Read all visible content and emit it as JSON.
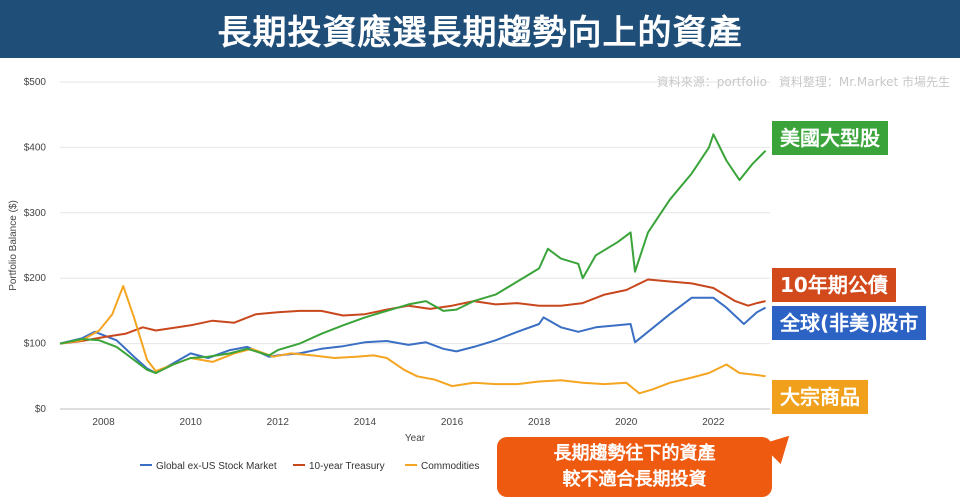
{
  "banner": {
    "title": "長期投資應選長期趨勢向上的資產"
  },
  "source": {
    "text": "資料來源：portfolio　資料整理：Mr.Market 市場先生"
  },
  "callouts": {
    "us_large": "美國大型股",
    "treasury": "10年期公債",
    "global": "全球(非美)股市",
    "commodities": "大宗商品"
  },
  "note": {
    "line1": "長期趨勢往下的資產",
    "line2": "較不適合長期投資"
  },
  "colors": {
    "us": "#3aa43a",
    "global": "#3a6fc4",
    "treasury": "#c8471d",
    "commodities": "#f4a521",
    "banner": "#1f4e79",
    "note": "#ee5a10"
  },
  "chart_data": {
    "type": "line",
    "xlabel": "Year",
    "ylabel": "Portfolio Balance ($)",
    "xlim": [
      2007.0,
      2023.3
    ],
    "ylim": [
      0,
      500
    ],
    "x_ticks": [
      2008,
      2010,
      2012,
      2014,
      2016,
      2018,
      2020,
      2022
    ],
    "y_ticks": [
      0,
      100,
      200,
      300,
      400,
      500
    ],
    "y_tick_labels": [
      "$0",
      "$100",
      "$200",
      "$300",
      "$400",
      "$500"
    ],
    "grid": "horizontal",
    "legend": "bottom",
    "series": [
      {
        "name": "Global ex-US Stock Market",
        "color": "#3a6fc4",
        "points": [
          [
            2007.0,
            100
          ],
          [
            2007.5,
            108
          ],
          [
            2007.8,
            118
          ],
          [
            2008.3,
            105
          ],
          [
            2008.7,
            80
          ],
          [
            2009.0,
            62
          ],
          [
            2009.2,
            55
          ],
          [
            2009.6,
            70
          ],
          [
            2010.0,
            85
          ],
          [
            2010.4,
            78
          ],
          [
            2010.9,
            90
          ],
          [
            2011.3,
            95
          ],
          [
            2011.8,
            80
          ],
          [
            2012.0,
            82
          ],
          [
            2012.5,
            85
          ],
          [
            2013.0,
            92
          ],
          [
            2013.5,
            96
          ],
          [
            2014.0,
            102
          ],
          [
            2014.5,
            104
          ],
          [
            2015.0,
            98
          ],
          [
            2015.4,
            102
          ],
          [
            2015.8,
            92
          ],
          [
            2016.1,
            88
          ],
          [
            2016.5,
            95
          ],
          [
            2017.0,
            105
          ],
          [
            2017.5,
            118
          ],
          [
            2018.0,
            130
          ],
          [
            2018.1,
            140
          ],
          [
            2018.5,
            125
          ],
          [
            2018.9,
            118
          ],
          [
            2019.3,
            125
          ],
          [
            2019.8,
            128
          ],
          [
            2020.1,
            130
          ],
          [
            2020.2,
            102
          ],
          [
            2020.5,
            118
          ],
          [
            2021.0,
            145
          ],
          [
            2021.5,
            170
          ],
          [
            2022.0,
            170
          ],
          [
            2022.3,
            155
          ],
          [
            2022.7,
            130
          ],
          [
            2023.0,
            148
          ],
          [
            2023.2,
            155
          ]
        ]
      },
      {
        "name": "10-year Treasury",
        "color": "#c8471d",
        "points": [
          [
            2007.0,
            100
          ],
          [
            2007.5,
            104
          ],
          [
            2008.0,
            110
          ],
          [
            2008.5,
            115
          ],
          [
            2008.9,
            125
          ],
          [
            2009.2,
            120
          ],
          [
            2009.7,
            125
          ],
          [
            2010.0,
            128
          ],
          [
            2010.5,
            135
          ],
          [
            2011.0,
            132
          ],
          [
            2011.5,
            145
          ],
          [
            2012.0,
            148
          ],
          [
            2012.5,
            150
          ],
          [
            2013.0,
            150
          ],
          [
            2013.5,
            143
          ],
          [
            2014.0,
            145
          ],
          [
            2014.5,
            152
          ],
          [
            2015.0,
            158
          ],
          [
            2015.5,
            153
          ],
          [
            2016.0,
            158
          ],
          [
            2016.5,
            165
          ],
          [
            2017.0,
            160
          ],
          [
            2017.5,
            162
          ],
          [
            2018.0,
            158
          ],
          [
            2018.5,
            158
          ],
          [
            2019.0,
            162
          ],
          [
            2019.5,
            175
          ],
          [
            2020.0,
            182
          ],
          [
            2020.5,
            198
          ],
          [
            2021.0,
            195
          ],
          [
            2021.5,
            192
          ],
          [
            2022.0,
            185
          ],
          [
            2022.5,
            165
          ],
          [
            2022.8,
            158
          ],
          [
            2023.0,
            162
          ],
          [
            2023.2,
            165
          ]
        ]
      },
      {
        "name": "Commodities",
        "color": "#f4a521",
        "points": [
          [
            2007.0,
            100
          ],
          [
            2007.5,
            105
          ],
          [
            2007.9,
            120
          ],
          [
            2008.2,
            145
          ],
          [
            2008.45,
            188
          ],
          [
            2008.7,
            140
          ],
          [
            2009.0,
            75
          ],
          [
            2009.2,
            58
          ],
          [
            2009.6,
            68
          ],
          [
            2010.0,
            78
          ],
          [
            2010.5,
            72
          ],
          [
            2011.0,
            85
          ],
          [
            2011.4,
            92
          ],
          [
            2011.9,
            80
          ],
          [
            2012.3,
            85
          ],
          [
            2012.8,
            82
          ],
          [
            2013.3,
            78
          ],
          [
            2013.8,
            80
          ],
          [
            2014.2,
            82
          ],
          [
            2014.5,
            78
          ],
          [
            2014.9,
            60
          ],
          [
            2015.2,
            50
          ],
          [
            2015.6,
            45
          ],
          [
            2016.0,
            35
          ],
          [
            2016.5,
            40
          ],
          [
            2017.0,
            38
          ],
          [
            2017.5,
            38
          ],
          [
            2018.0,
            42
          ],
          [
            2018.5,
            44
          ],
          [
            2019.0,
            40
          ],
          [
            2019.5,
            38
          ],
          [
            2020.0,
            40
          ],
          [
            2020.3,
            24
          ],
          [
            2020.6,
            30
          ],
          [
            2021.0,
            40
          ],
          [
            2021.5,
            48
          ],
          [
            2021.9,
            55
          ],
          [
            2022.3,
            68
          ],
          [
            2022.6,
            55
          ],
          [
            2023.0,
            52
          ],
          [
            2023.2,
            50
          ]
        ]
      },
      {
        "name": "",
        "color": "#3aa43a",
        "points": [
          [
            2007.0,
            100
          ],
          [
            2007.5,
            107
          ],
          [
            2007.9,
            105
          ],
          [
            2008.3,
            95
          ],
          [
            2008.7,
            75
          ],
          [
            2009.0,
            60
          ],
          [
            2009.2,
            55
          ],
          [
            2009.6,
            68
          ],
          [
            2010.0,
            78
          ],
          [
            2010.4,
            80
          ],
          [
            2010.9,
            85
          ],
          [
            2011.3,
            92
          ],
          [
            2011.8,
            82
          ],
          [
            2012.0,
            90
          ],
          [
            2012.5,
            100
          ],
          [
            2013.0,
            115
          ],
          [
            2013.5,
            128
          ],
          [
            2014.0,
            140
          ],
          [
            2014.5,
            150
          ],
          [
            2015.0,
            160
          ],
          [
            2015.4,
            165
          ],
          [
            2015.8,
            150
          ],
          [
            2016.1,
            152
          ],
          [
            2016.5,
            165
          ],
          [
            2017.0,
            175
          ],
          [
            2017.5,
            195
          ],
          [
            2018.0,
            215
          ],
          [
            2018.2,
            245
          ],
          [
            2018.5,
            230
          ],
          [
            2018.9,
            222
          ],
          [
            2019.0,
            200
          ],
          [
            2019.3,
            235
          ],
          [
            2019.8,
            255
          ],
          [
            2020.1,
            270
          ],
          [
            2020.2,
            210
          ],
          [
            2020.5,
            270
          ],
          [
            2021.0,
            320
          ],
          [
            2021.5,
            360
          ],
          [
            2021.9,
            400
          ],
          [
            2022.0,
            420
          ],
          [
            2022.3,
            380
          ],
          [
            2022.6,
            350
          ],
          [
            2022.9,
            375
          ],
          [
            2023.2,
            395
          ]
        ]
      }
    ]
  }
}
